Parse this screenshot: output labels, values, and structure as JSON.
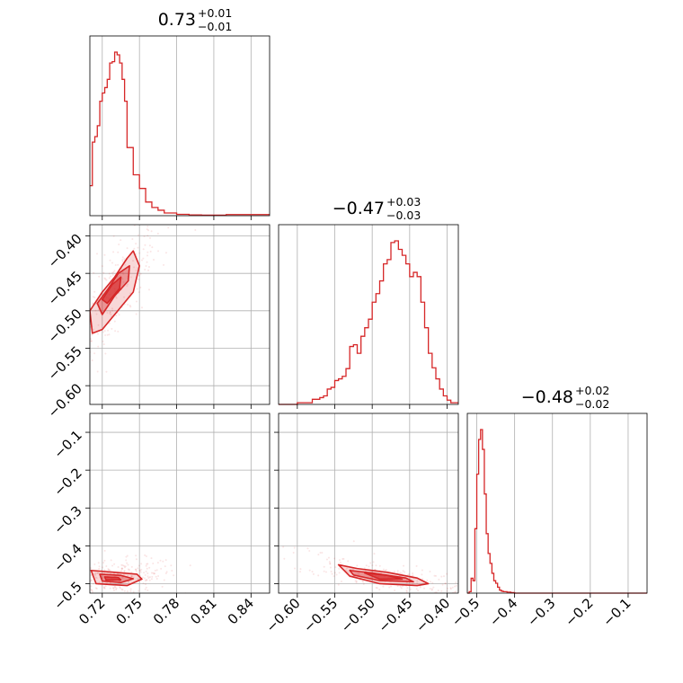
{
  "chart_data": {
    "type": "corner",
    "color": "#d62728",
    "grid": true,
    "titles": [
      {
        "median": "0.73",
        "upper": "+0.01",
        "lower": "−0.01"
      },
      {
        "median": "−0.47",
        "upper": "+0.03",
        "lower": "−0.03"
      },
      {
        "median": "−0.48",
        "upper": "+0.02",
        "lower": "−0.02"
      }
    ],
    "params": [
      {
        "range": [
          0.71,
          0.855
        ],
        "ticks": [
          0.72,
          0.75,
          0.78,
          0.81,
          0.84
        ],
        "tick_labels": [
          "0.72",
          "0.75",
          "0.78",
          "0.81",
          "0.84"
        ]
      },
      {
        "range": [
          -0.625,
          -0.385
        ],
        "ticks": [
          -0.6,
          -0.55,
          -0.5,
          -0.45,
          -0.4
        ],
        "tick_labels": [
          "−0.60",
          "−0.55",
          "−0.50",
          "−0.45",
          "−0.40"
        ]
      },
      {
        "range": [
          -0.525,
          -0.05
        ],
        "ticks": [
          -0.5,
          -0.4,
          -0.3,
          -0.2,
          -0.1
        ],
        "tick_labels": [
          "−0.5",
          "−0.4",
          "−0.3",
          "−0.2",
          "−0.1"
        ]
      }
    ],
    "diagonal_hists": [
      {
        "bin_edges": [
          0.71,
          0.712,
          0.714,
          0.716,
          0.718,
          0.72,
          0.722,
          0.724,
          0.726,
          0.728,
          0.73,
          0.732,
          0.734,
          0.736,
          0.738,
          0.74,
          0.745,
          0.75,
          0.755,
          0.76,
          0.765,
          0.77,
          0.78,
          0.79,
          0.8,
          0.82,
          0.855
        ],
        "counts": [
          110,
          270,
          290,
          330,
          420,
          450,
          470,
          500,
          560,
          565,
          600,
          590,
          560,
          500,
          420,
          250,
          150,
          100,
          50,
          30,
          20,
          10,
          5,
          3,
          2,
          4
        ]
      },
      {
        "bin_edges": [
          -0.625,
          -0.6,
          -0.58,
          -0.57,
          -0.565,
          -0.56,
          -0.555,
          -0.55,
          -0.545,
          -0.54,
          -0.535,
          -0.53,
          -0.525,
          -0.52,
          -0.515,
          -0.51,
          -0.505,
          -0.5,
          -0.495,
          -0.49,
          -0.485,
          -0.48,
          -0.475,
          -0.47,
          -0.465,
          -0.46,
          -0.455,
          -0.45,
          -0.445,
          -0.44,
          -0.435,
          -0.43,
          -0.425,
          -0.42,
          -0.415,
          -0.41,
          -0.405,
          -0.4,
          -0.395,
          -0.385
        ],
        "counts": [
          0,
          2,
          6,
          8,
          10,
          18,
          20,
          28,
          30,
          33,
          42,
          68,
          70,
          60,
          80,
          90,
          100,
          120,
          130,
          145,
          165,
          170,
          190,
          192,
          182,
          175,
          165,
          150,
          155,
          150,
          120,
          90,
          60,
          43,
          30,
          18,
          10,
          5,
          2
        ]
      },
      {
        "bin_edges": [
          -0.525,
          -0.52,
          -0.515,
          -0.51,
          -0.505,
          -0.5,
          -0.495,
          -0.49,
          -0.485,
          -0.48,
          -0.475,
          -0.47,
          -0.465,
          -0.46,
          -0.455,
          -0.45,
          -0.445,
          -0.44,
          -0.435,
          -0.43,
          -0.42,
          -0.41,
          -0.4,
          -0.05
        ],
        "counts": [
          0,
          3,
          30,
          25,
          130,
          240,
          310,
          330,
          290,
          200,
          120,
          80,
          60,
          40,
          25,
          20,
          12,
          6,
          4,
          3,
          2,
          1,
          0
        ]
      }
    ],
    "contours_2d": [
      {
        "x": 0,
        "y": 1,
        "levels": [
          [
            [
              0.71,
              -0.5
            ],
            [
              0.72,
              -0.475
            ],
            [
              0.73,
              -0.455
            ],
            [
              0.74,
              -0.43
            ],
            [
              0.745,
              -0.42
            ],
            [
              0.75,
              -0.44
            ],
            [
              0.745,
              -0.475
            ],
            [
              0.735,
              -0.495
            ],
            [
              0.72,
              -0.525
            ],
            [
              0.712,
              -0.53
            ]
          ],
          [
            [
              0.716,
              -0.49
            ],
            [
              0.725,
              -0.47
            ],
            [
              0.733,
              -0.45
            ],
            [
              0.742,
              -0.44
            ],
            [
              0.741,
              -0.46
            ],
            [
              0.73,
              -0.48
            ],
            [
              0.72,
              -0.505
            ]
          ],
          [
            [
              0.72,
              -0.485
            ],
            [
              0.728,
              -0.465
            ],
            [
              0.735,
              -0.455
            ],
            [
              0.734,
              -0.47
            ],
            [
              0.724,
              -0.49
            ]
          ]
        ]
      },
      {
        "x": 0,
        "y": 2,
        "levels": [
          [
            [
              0.711,
              -0.465
            ],
            [
              0.73,
              -0.47
            ],
            [
              0.748,
              -0.475
            ],
            [
              0.752,
              -0.488
            ],
            [
              0.74,
              -0.505
            ],
            [
              0.715,
              -0.5
            ]
          ],
          [
            [
              0.718,
              -0.475
            ],
            [
              0.735,
              -0.478
            ],
            [
              0.745,
              -0.487
            ],
            [
              0.735,
              -0.497
            ],
            [
              0.72,
              -0.493
            ]
          ],
          [
            [
              0.722,
              -0.482
            ],
            [
              0.733,
              -0.484
            ],
            [
              0.735,
              -0.49
            ],
            [
              0.723,
              -0.49
            ]
          ]
        ]
      },
      {
        "x": 1,
        "y": 2,
        "levels": [
          [
            [
              -0.545,
              -0.45
            ],
            [
              -0.52,
              -0.46
            ],
            [
              -0.48,
              -0.47
            ],
            [
              -0.44,
              -0.485
            ],
            [
              -0.425,
              -0.5
            ],
            [
              -0.44,
              -0.505
            ],
            [
              -0.49,
              -0.5
            ],
            [
              -0.53,
              -0.48
            ]
          ],
          [
            [
              -0.53,
              -0.465
            ],
            [
              -0.495,
              -0.473
            ],
            [
              -0.455,
              -0.485
            ],
            [
              -0.445,
              -0.495
            ],
            [
              -0.49,
              -0.492
            ],
            [
              -0.525,
              -0.477
            ]
          ],
          [
            [
              -0.51,
              -0.472
            ],
            [
              -0.48,
              -0.478
            ],
            [
              -0.46,
              -0.488
            ],
            [
              -0.49,
              -0.488
            ]
          ]
        ]
      }
    ]
  }
}
